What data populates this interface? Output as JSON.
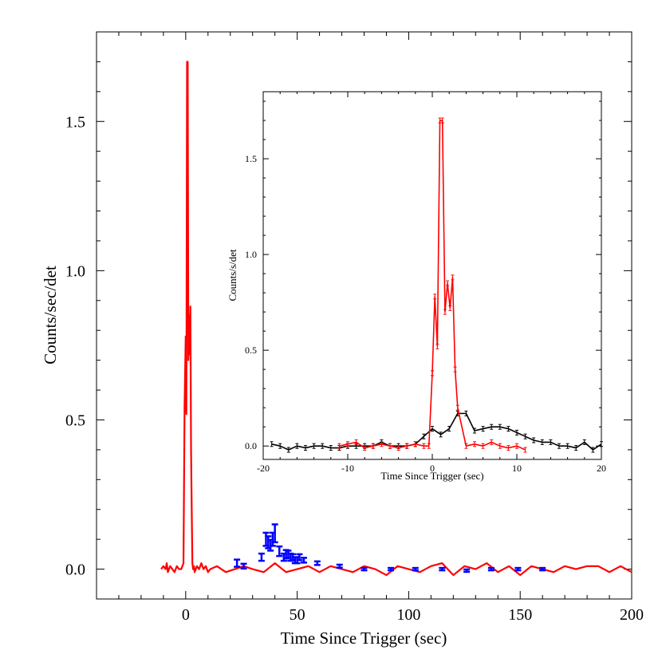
{
  "chart_data": [
    {
      "id": "main",
      "type": "line",
      "title": "",
      "xlabel": "Time Since Trigger (sec)",
      "ylabel": "Counts/sec/det",
      "xlim": [
        -40,
        200
      ],
      "ylim": [
        -0.1,
        1.8
      ],
      "xticks": [
        0,
        50,
        100,
        150,
        200
      ],
      "xtick_labels": [
        "0",
        "50",
        "100",
        "150",
        "200"
      ],
      "yticks": [
        0.0,
        0.5,
        1.0,
        1.5
      ],
      "ytick_labels": [
        "0.0",
        "0.5",
        "1.0",
        "1.5"
      ],
      "series": [
        {
          "name": "red",
          "color": "#ff0000",
          "x": [
            -11,
            -10,
            -9,
            -8.5,
            -8,
            -7,
            -6,
            -5,
            -4,
            -3,
            -2,
            -1,
            -0.5,
            0,
            0.3,
            0.6,
            0.9,
            1.2,
            1.5,
            1.8,
            2.1,
            2.4,
            2.7,
            3.0,
            3.3,
            3.7,
            4,
            5,
            6,
            7,
            8,
            9,
            10,
            11,
            14,
            18,
            22,
            26,
            30,
            35,
            40,
            45,
            50,
            55,
            60,
            65,
            70,
            75,
            80,
            85,
            90,
            95,
            100,
            105,
            110,
            115,
            120,
            125,
            130,
            135,
            140,
            145,
            150,
            155,
            160,
            165,
            170,
            175,
            180,
            185,
            190,
            195,
            200
          ],
          "y": [
            0.0,
            0.01,
            0.0,
            0.02,
            -0.01,
            0.01,
            0.0,
            -0.01,
            0.01,
            0.0,
            0.0,
            0.02,
            0.55,
            0.78,
            0.52,
            1.7,
            1.7,
            0.7,
            0.85,
            0.72,
            0.88,
            0.4,
            0.2,
            0.02,
            0.0,
            0.01,
            -0.01,
            0.01,
            0.0,
            0.02,
            0.0,
            0.01,
            -0.01,
            0.0,
            0.01,
            -0.01,
            0.0,
            0.01,
            0.0,
            -0.01,
            0.02,
            -0.01,
            0.0,
            0.01,
            -0.01,
            0.01,
            0.0,
            -0.01,
            0.01,
            0.0,
            -0.02,
            0.01,
            0.0,
            -0.01,
            0.01,
            0.02,
            -0.02,
            0.01,
            0.0,
            0.02,
            -0.01,
            0.01,
            -0.02,
            0.01,
            0.0,
            -0.01,
            0.01,
            0.0,
            0.01,
            0.01,
            -0.01,
            0.01,
            -0.01
          ]
        },
        {
          "name": "blue",
          "color": "#0000ff",
          "style": "errorbar",
          "x": [
            23,
            26,
            34,
            36,
            37,
            38,
            39,
            40,
            42,
            44,
            45,
            46,
            47,
            48,
            49,
            50,
            51,
            53,
            59,
            69,
            80,
            92,
            103,
            115,
            126,
            137,
            149,
            160
          ],
          "y": [
            0.02,
            0.01,
            0.04,
            0.1,
            0.09,
            0.08,
            0.1,
            0.12,
            0.06,
            0.04,
            0.05,
            0.05,
            0.04,
            0.04,
            0.03,
            0.03,
            0.04,
            0.03,
            0.02,
            0.01,
            0.0,
            0.0,
            0.0,
            0.0,
            -0.005,
            0.0,
            0.0,
            0.0
          ],
          "yerr": [
            0.012,
            0.008,
            0.012,
            0.022,
            0.02,
            0.018,
            0.022,
            0.03,
            0.016,
            0.012,
            0.014,
            0.012,
            0.012,
            0.01,
            0.01,
            0.01,
            0.01,
            0.008,
            0.006,
            0.005,
            0.004,
            0.004,
            0.004,
            0.004,
            0.004,
            0.004,
            0.004,
            0.004
          ]
        }
      ]
    },
    {
      "id": "inset",
      "type": "line",
      "title": "",
      "xlabel": "Time Since Trigger (sec)",
      "ylabel": "Counts/s/det",
      "xlim": [
        -20,
        20
      ],
      "ylim": [
        -0.07,
        1.85
      ],
      "xticks": [
        -20,
        -10,
        0,
        10,
        20
      ],
      "xtick_labels": [
        "-20",
        "-10",
        "0",
        "10",
        "20"
      ],
      "yticks": [
        0.0,
        0.5,
        1.0,
        1.5
      ],
      "ytick_labels": [
        "0.0",
        "0.5",
        "1.0",
        "1.5"
      ],
      "series": [
        {
          "name": "black",
          "color": "#000000",
          "x": [
            -19,
            -18,
            -17,
            -16,
            -15,
            -14,
            -13,
            -12,
            -11,
            -10,
            -9,
            -8,
            -7,
            -6,
            -5,
            -4,
            -3,
            -2,
            -1,
            0,
            1,
            2,
            3,
            4,
            5,
            6,
            7,
            8,
            9,
            10,
            11,
            12,
            13,
            14,
            15,
            16,
            17,
            18,
            19,
            20
          ],
          "y": [
            0.01,
            0.0,
            -0.02,
            0.0,
            -0.01,
            0.0,
            0.0,
            -0.01,
            -0.01,
            0.0,
            0.0,
            0.0,
            0.0,
            0.02,
            0.0,
            0.0,
            0.0,
            0.01,
            0.05,
            0.09,
            0.06,
            0.09,
            0.17,
            0.17,
            0.08,
            0.09,
            0.1,
            0.1,
            0.09,
            0.07,
            0.05,
            0.03,
            0.02,
            0.02,
            0.0,
            0.0,
            -0.01,
            0.02,
            -0.02,
            0.01
          ]
        },
        {
          "name": "red",
          "color": "#ff0000",
          "x": [
            -11,
            -10,
            -9,
            -8,
            -7,
            -6,
            -5,
            -4,
            -3,
            -2,
            -1,
            -0.4,
            0,
            0.3,
            0.6,
            0.9,
            1.2,
            1.5,
            1.8,
            2.1,
            2.4,
            2.7,
            3.0,
            4,
            5,
            6,
            7,
            8,
            9,
            10,
            11
          ],
          "y": [
            0.0,
            0.01,
            0.02,
            -0.01,
            0.0,
            0.01,
            0.0,
            -0.01,
            0.0,
            0.01,
            0.0,
            0.0,
            0.38,
            0.78,
            0.52,
            1.7,
            1.7,
            0.7,
            0.85,
            0.72,
            0.88,
            0.4,
            0.2,
            0.0,
            0.01,
            0.0,
            0.02,
            0.0,
            -0.01,
            0.0,
            -0.02
          ]
        }
      ]
    }
  ]
}
